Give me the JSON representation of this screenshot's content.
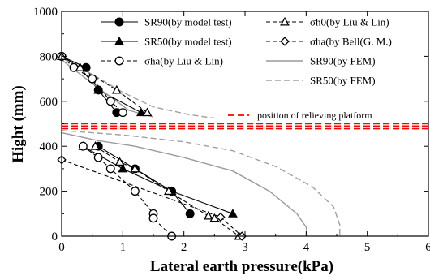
{
  "chart_data": {
    "type": "line",
    "xlabel": "Lateral earth pressure(kPa)",
    "ylabel": "Hight (mm)",
    "xlim": [
      0,
      6
    ],
    "ylim": [
      0,
      1000
    ],
    "xticks": [
      0,
      1,
      2,
      3,
      4,
      5,
      6
    ],
    "yticks": [
      0,
      200,
      400,
      600,
      800,
      1000
    ],
    "grid": false,
    "legend_position": "top-right",
    "series": [
      {
        "name": "SR90(by model test)",
        "style": "solid",
        "marker": "filled-circle",
        "color": "#000000",
        "segments": [
          [
            [
              0,
              800
            ],
            [
              0.4,
              750
            ],
            [
              0.6,
              650
            ],
            [
              0.9,
              550
            ]
          ],
          [
            [
              0.6,
              400
            ],
            [
              1.2,
              300
            ],
            [
              1.8,
              200
            ],
            [
              2.1,
              100
            ]
          ]
        ]
      },
      {
        "name": "SR50(by model test)",
        "style": "solid",
        "marker": "filled-triangle",
        "color": "#000000",
        "segments": [
          [
            [
              0,
              800
            ],
            [
              0.3,
              750
            ],
            [
              0.6,
              650
            ],
            [
              1.3,
              550
            ]
          ],
          [
            [
              0.35,
              400
            ],
            [
              1.0,
              300
            ],
            [
              1.8,
              200
            ],
            [
              2.8,
              100
            ]
          ]
        ]
      },
      {
        "name": "σha(by Liu & Lin)",
        "style": "dashed",
        "marker": "open-circle",
        "color": "#000000",
        "segments": [
          [
            [
              0,
              800
            ],
            [
              0.2,
              750
            ],
            [
              0.5,
              700
            ],
            [
              0.8,
              600
            ],
            [
              1.0,
              550
            ]
          ],
          [
            [
              0.35,
              400
            ],
            [
              0.6,
              350
            ],
            [
              0.8,
              300
            ],
            [
              1.2,
              200
            ],
            [
              1.5,
              100
            ],
            [
              1.5,
              80
            ],
            [
              1.8,
              0
            ]
          ]
        ]
      },
      {
        "name": "σh0(by Liu & Lin)",
        "style": "dashed",
        "marker": "open-triangle",
        "color": "#000000",
        "segments": [
          [
            [
              0,
              800
            ],
            [
              0.3,
              750
            ],
            [
              0.9,
              650
            ],
            [
              1.4,
              550
            ]
          ],
          [
            [
              0.55,
              400
            ],
            [
              0.95,
              330
            ],
            [
              1.2,
              300
            ],
            [
              1.75,
              200
            ],
            [
              2.4,
              90
            ],
            [
              2.5,
              80
            ],
            [
              2.9,
              0
            ]
          ]
        ]
      },
      {
        "name": "σha(by Bell(G. M.)",
        "style": "dashed",
        "marker": "open-diamond",
        "color": "#000000",
        "segments": [
          [
            [
              0,
              340
            ],
            [
              2.6,
              85
            ],
            [
              2.95,
              0
            ]
          ]
        ]
      },
      {
        "name": "SR90(by FEM)",
        "style": "solid",
        "marker": "none",
        "color": "#9a9a9a",
        "segments": [
          [
            [
              0.02,
              780
            ],
            [
              0.4,
              700
            ],
            [
              0.8,
              620
            ],
            [
              1.1,
              560
            ],
            [
              1.5,
              530
            ]
          ],
          [
            [
              0,
              460
            ],
            [
              0.6,
              425
            ],
            [
              1.2,
              400
            ],
            [
              2.0,
              350
            ],
            [
              2.8,
              290
            ],
            [
              3.4,
              200
            ],
            [
              3.85,
              100
            ],
            [
              4.0,
              40
            ],
            [
              4.02,
              0
            ]
          ]
        ]
      },
      {
        "name": "SR50(by FEM)",
        "style": "dashed",
        "marker": "none",
        "color": "#a0a0a0",
        "segments": [
          [
            [
              0.02,
              790
            ],
            [
              0.5,
              720
            ],
            [
              1.0,
              640
            ],
            [
              1.5,
              575
            ],
            [
              2.1,
              540
            ],
            [
              2.5,
              525
            ]
          ],
          [
            [
              0,
              470
            ],
            [
              1.0,
              450
            ],
            [
              2.0,
              420
            ],
            [
              2.8,
              380
            ],
            [
              3.5,
              310
            ],
            [
              4.1,
              220
            ],
            [
              4.45,
              130
            ],
            [
              4.55,
              50
            ],
            [
              4.55,
              0
            ]
          ]
        ]
      }
    ],
    "annotations": [
      {
        "name": "position of relieving platform",
        "style": "red-dashed-band",
        "color": "#ff0000",
        "y_values": [
          478,
          490,
          500
        ]
      }
    ]
  }
}
